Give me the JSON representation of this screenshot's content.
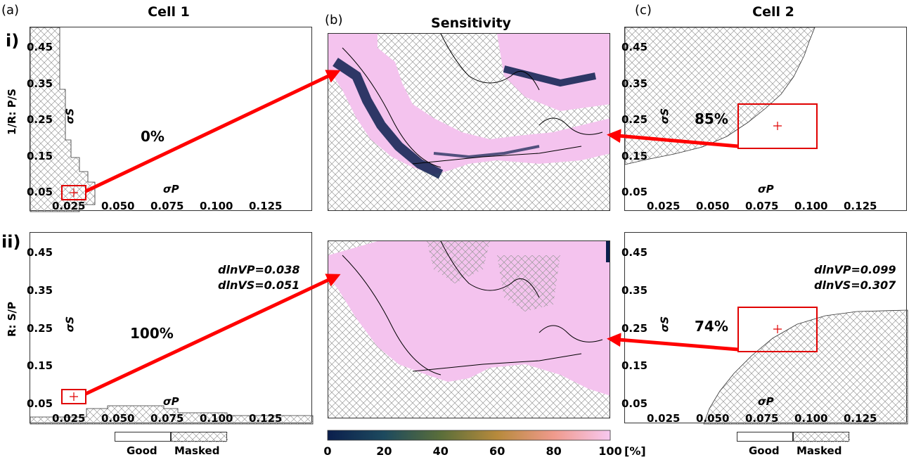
{
  "panel_letters": {
    "a": "(a)",
    "b": "(b)",
    "c": "(c)"
  },
  "titles": {
    "left": "Cell 1",
    "center": "Sensitivity",
    "right": "Cell 2"
  },
  "rows": {
    "r1": {
      "label": "i)",
      "side": "1/R: P/S"
    },
    "r2": {
      "label": "ii)",
      "side": "R: S/P"
    }
  },
  "axes": {
    "x_ticks": [
      "0.025",
      "0.050",
      "0.075",
      "0.100",
      "0.125"
    ],
    "y_ticks": [
      "0.45",
      "0.35",
      "0.25",
      "0.15",
      "0.05"
    ],
    "xlabel": "σP",
    "ylabel": "σS"
  },
  "percentages": {
    "left_top": "0%",
    "left_bottom": "100%",
    "right_top": "85%",
    "right_bottom": "74%"
  },
  "annotations": {
    "left_bottom": {
      "line1": "dlnVP=0.038",
      "line2": "dlnVS=0.051"
    },
    "right_bottom": {
      "line1": "dlnVP=0.099",
      "line2": "dlnVS=0.307"
    }
  },
  "legend": {
    "good": "Good",
    "masked": "Masked"
  },
  "colorbar": {
    "ticks": [
      "0",
      "20",
      "40",
      "60",
      "80",
      "100"
    ],
    "unit": "[%]"
  },
  "colors": {
    "arrow": "#ff0000",
    "box": "#e00000",
    "map_pink": "#f4c3ee",
    "map_navy": "#0b1f4d"
  },
  "chart_data": [
    {
      "type": "heatmap",
      "panel": "a-i",
      "title": "Cell 1",
      "xlabel": "σP",
      "ylabel": "σS",
      "xlim": [
        0.0,
        0.15
      ],
      "ylim": [
        0.02,
        0.5
      ],
      "good_fraction_percent": 0,
      "selected_point": {
        "x": 0.027,
        "y": 0.075
      }
    },
    {
      "type": "heatmap",
      "panel": "a-ii",
      "xlabel": "σP",
      "ylabel": "σS",
      "xlim": [
        0.0,
        0.15
      ],
      "ylim": [
        0.02,
        0.5
      ],
      "good_fraction_percent": 100,
      "selected_point": {
        "x": 0.027,
        "y": 0.075
      }
    },
    {
      "type": "heatmap",
      "panel": "c-i",
      "title": "Cell 2",
      "xlabel": "σP",
      "ylabel": "σS",
      "xlim": [
        0.0,
        0.15
      ],
      "ylim": [
        0.02,
        0.5
      ],
      "good_fraction_percent": 85,
      "selected_point": {
        "x": 0.083,
        "y": 0.25
      }
    },
    {
      "type": "heatmap",
      "panel": "c-ii",
      "xlabel": "σP",
      "ylabel": "σS",
      "xlim": [
        0.0,
        0.15
      ],
      "ylim": [
        0.02,
        0.5
      ],
      "good_fraction_percent": 74,
      "selected_point": {
        "x": 0.083,
        "y": 0.25
      }
    },
    {
      "type": "heatmap",
      "panel": "b",
      "title": "Sensitivity",
      "colorbar_range": [
        0,
        100
      ],
      "unit": "%"
    }
  ]
}
